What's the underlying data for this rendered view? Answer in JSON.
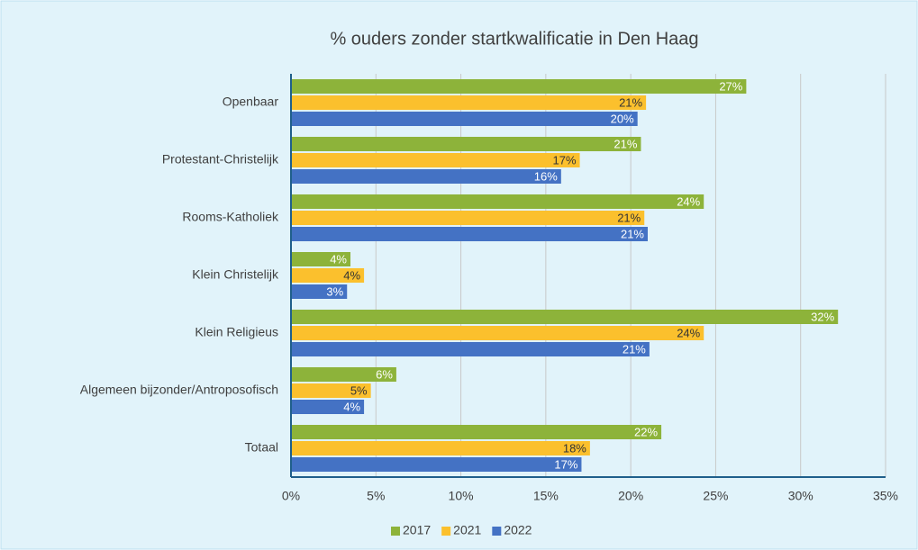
{
  "chart_data": {
    "type": "hbar",
    "title": "% ouders zonder startkwalificatie in Den Haag",
    "categories": [
      "Openbaar",
      "Protestant-Christelijk",
      "Rooms-Katholiek",
      "Klein Christelijk",
      "Klein Religieus",
      "Algemeen bijzonder/Antroposofisch",
      "Totaal"
    ],
    "series": [
      {
        "name": "2017",
        "color": "#8db33a",
        "values": [
          26.8,
          20.6,
          24.3,
          3.5,
          32.2,
          6.2,
          21.8
        ],
        "value_labels": [
          "27%",
          "21%",
          "24%",
          "4%",
          "32%",
          "6%",
          "22%"
        ]
      },
      {
        "name": "2021",
        "color": "#fbc02d",
        "values": [
          20.9,
          17.0,
          20.8,
          4.3,
          24.3,
          4.7,
          17.6
        ],
        "value_labels": [
          "21%",
          "17%",
          "21%",
          "4%",
          "24%",
          "5%",
          "18%"
        ]
      },
      {
        "name": "2022",
        "color": "#4472c4",
        "values": [
          20.4,
          15.9,
          21.0,
          3.3,
          21.1,
          4.3,
          17.1
        ],
        "value_labels": [
          "20%",
          "16%",
          "21%",
          "3%",
          "21%",
          "4%",
          "17%"
        ]
      }
    ],
    "xlim": [
      0,
      35
    ],
    "xticks": [
      {
        "value": 0,
        "label": "0%"
      },
      {
        "value": 5,
        "label": "5%"
      },
      {
        "value": 10,
        "label": "10%"
      },
      {
        "value": 15,
        "label": "15%"
      },
      {
        "value": 20,
        "label": "20%"
      },
      {
        "value": 25,
        "label": "25%"
      },
      {
        "value": 30,
        "label": "30%"
      },
      {
        "value": 35,
        "label": "35%"
      }
    ],
    "grid": true,
    "legend": "bottom"
  }
}
